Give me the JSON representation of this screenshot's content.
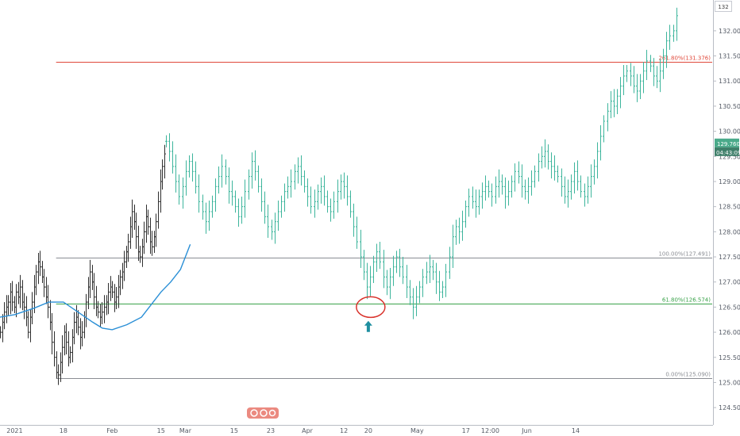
{
  "chart_data": {
    "type": "line",
    "price_scale": {
      "ticks": [
        "132.000",
        "131.500",
        "131.000",
        "130.500",
        "130.000",
        "129.500",
        "129.000",
        "128.500",
        "128.000",
        "127.500",
        "127.000",
        "126.500",
        "126.000",
        "125.500",
        "125.000",
        "124.500"
      ],
      "tick_values": [
        132.0,
        131.5,
        131.0,
        130.5,
        130.0,
        129.5,
        129.0,
        128.5,
        128.0,
        127.5,
        127.0,
        126.5,
        126.0,
        125.5,
        125.0,
        124.5
      ],
      "ylim": [
        124.25,
        132.55
      ],
      "top_label": "132"
    },
    "time_scale": {
      "labels": [
        "2021",
        "18",
        "Feb",
        "15",
        "Mar",
        "15",
        "23",
        "Apr",
        "12",
        "20",
        "May",
        "17",
        "12:00",
        "Jun",
        "14"
      ],
      "range": [
        -0.6,
        28.6
      ],
      "positions": [
        0.0,
        2.0,
        4.0,
        6.0,
        7.0,
        9.0,
        10.5,
        12.0,
        13.5,
        14.5,
        16.5,
        18.5,
        19.5,
        21.0,
        23.0
      ]
    },
    "last_price": {
      "value": 129.76,
      "label": "129.760",
      "countdown": "04:43:09",
      "color": "#4aaa8a"
    },
    "fib_levels": [
      {
        "label": "261.80%(131.376)",
        "value": 131.376,
        "color": "#e0483a"
      },
      {
        "label": "100.00%(127.491)",
        "value": 127.491,
        "color": "#8a8d93"
      },
      {
        "label": "61.80%(126.574)",
        "value": 126.574,
        "color": "#3aa24a"
      },
      {
        "label": "0.00%(125.090)",
        "value": 125.09,
        "color": "#8a8d93"
      }
    ],
    "fib_start_x": 1.7,
    "series": [
      {
        "style": "ohlc-bars",
        "color": "#2f2f2f",
        "x0": -0.6,
        "step": 0.082,
        "closes": [
          126.0,
          126.2,
          126.4,
          126.5,
          126.6,
          126.8,
          126.6,
          126.5,
          126.8,
          126.7,
          126.9,
          126.6,
          126.5,
          126.3,
          126.0,
          126.3,
          126.6,
          126.9,
          127.2,
          127.4,
          127.3,
          127.1,
          126.9,
          126.7,
          126.5,
          126.2,
          125.8,
          125.5,
          125.2,
          125.15,
          125.4,
          125.7,
          126.0,
          125.8,
          125.5,
          125.6,
          125.9,
          126.2,
          126.3,
          126.1,
          125.9,
          126.0,
          126.3,
          126.6,
          126.9,
          127.2,
          127.0,
          126.7,
          126.5,
          126.4,
          126.3,
          126.4,
          126.5,
          126.6,
          126.8,
          126.9,
          126.8,
          126.6,
          126.7,
          126.9,
          127.1,
          127.2,
          127.4,
          127.6,
          127.8,
          128.1,
          128.4,
          128.2,
          127.9,
          127.6,
          127.5,
          127.7,
          128.0,
          128.3,
          128.1,
          127.8,
          127.7,
          127.9,
          128.2,
          128.6,
          129.0,
          129.3,
          129.55
        ]
      },
      {
        "style": "ohlc-bars",
        "color": "#3db59c",
        "x0": 6.2,
        "step": 0.135,
        "closes": [
          129.8,
          129.6,
          129.3,
          129.0,
          128.7,
          128.9,
          129.2,
          129.4,
          129.2,
          128.9,
          128.6,
          128.4,
          128.2,
          128.4,
          128.6,
          128.9,
          129.1,
          129.3,
          129.1,
          128.8,
          128.7,
          128.5,
          128.3,
          128.5,
          128.8,
          129.1,
          129.4,
          129.2,
          128.9,
          128.6,
          128.3,
          128.1,
          128.0,
          128.2,
          128.4,
          128.6,
          128.8,
          128.9,
          129.0,
          129.2,
          129.3,
          129.1,
          128.9,
          128.7,
          128.5,
          128.6,
          128.8,
          128.9,
          128.7,
          128.5,
          128.4,
          128.6,
          128.8,
          129.0,
          128.9,
          128.7,
          128.4,
          128.1,
          127.8,
          127.5,
          127.2,
          126.9,
          127.1,
          127.4,
          127.6,
          127.4,
          127.1,
          126.9,
          127.1,
          127.3,
          127.5,
          127.3,
          127.1,
          126.9,
          126.7,
          126.5,
          126.7,
          126.9,
          127.1,
          127.2,
          127.3,
          127.2,
          127.0,
          126.8,
          126.9,
          127.2,
          127.5,
          127.9,
          128.1,
          128.0,
          128.2,
          128.5,
          128.7,
          128.6,
          128.5,
          128.7,
          128.8,
          128.9,
          128.8,
          128.7,
          128.9,
          129.0,
          128.9,
          128.7,
          128.8,
          129.0,
          129.2,
          129.1,
          128.9,
          128.8,
          128.9,
          129.0,
          129.2,
          129.4,
          129.5,
          129.6,
          129.4,
          129.3,
          129.2,
          129.1,
          128.9,
          128.7,
          128.8,
          129.0,
          129.2,
          129.0,
          128.8,
          128.7,
          128.9,
          129.1,
          129.3,
          129.6,
          129.9,
          130.2,
          130.4,
          130.6,
          130.5,
          130.7,
          130.9,
          131.1,
          131.2,
          131.1,
          130.9,
          130.8,
          131.0,
          131.2,
          131.4,
          131.3,
          131.1,
          131.0,
          131.2,
          131.5,
          131.8,
          131.9,
          132.0,
          132.3
        ]
      },
      {
        "style": "line",
        "color": "#2a8fd6",
        "points": [
          [
            -0.6,
            126.3
          ],
          [
            0.0,
            126.35
          ],
          [
            0.8,
            126.48
          ],
          [
            1.4,
            126.6
          ],
          [
            2.0,
            126.6
          ],
          [
            2.6,
            126.4
          ],
          [
            3.2,
            126.2
          ],
          [
            3.6,
            126.08
          ],
          [
            4.0,
            126.05
          ],
          [
            4.6,
            126.15
          ],
          [
            5.2,
            126.3
          ],
          [
            5.6,
            126.55
          ],
          [
            6.0,
            126.8
          ],
          [
            6.4,
            127.0
          ],
          [
            6.8,
            127.25
          ],
          [
            7.0,
            127.5
          ],
          [
            7.2,
            127.75
          ]
        ]
      }
    ],
    "annotations": [
      {
        "type": "ellipse",
        "x": 14.5,
        "y": 126.5,
        "color": "#d9322b"
      },
      {
        "type": "arrow-up",
        "x": 14.5,
        "y": 126.1,
        "color": "#1f8fa0"
      }
    ]
  }
}
